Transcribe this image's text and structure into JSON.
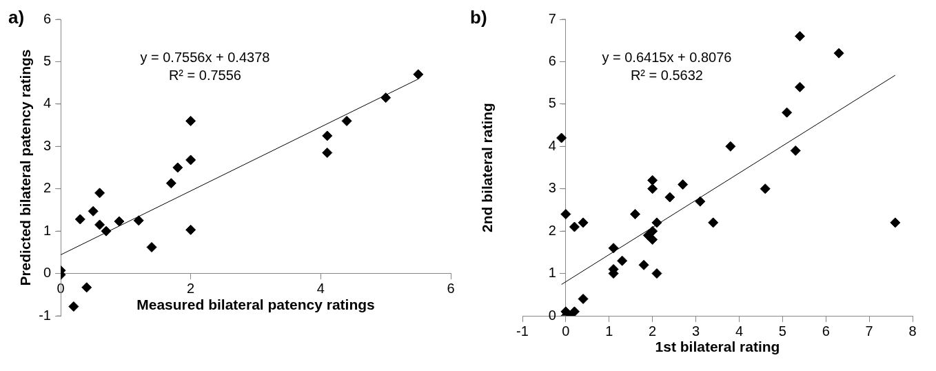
{
  "chart_data": [
    {
      "type": "scatter",
      "xlabel": "Measured bilateral patency ratings",
      "ylabel": "Predicted bilateral patency ratings",
      "annotations": [
        "a)",
        "y = 0.7556x + 0.4378",
        "R² = 0.7556"
      ],
      "xlim": [
        0,
        6
      ],
      "xticks": [
        0,
        2,
        4,
        6
      ],
      "ylim": [
        -1,
        6
      ],
      "yticks": [
        -1,
        0,
        1,
        2,
        3,
        4,
        5,
        6
      ],
      "grid": false,
      "legend": false,
      "series": [
        {
          "marker": "diamond",
          "color": "#000000",
          "x": [
            0,
            0,
            0.2,
            0.4,
            0.3,
            0.5,
            0.6,
            0.6,
            0.7,
            0.9,
            1.2,
            1.4,
            1.7,
            1.8,
            2.0,
            2.0,
            2.0,
            4.1,
            4.1,
            4.4,
            5.0,
            5.5
          ],
          "values": [
            0.07,
            -0.03,
            -0.78,
            -0.33,
            1.28,
            1.47,
            1.9,
            1.15,
            1.0,
            1.23,
            1.25,
            0.62,
            2.13,
            2.5,
            3.6,
            2.68,
            1.03,
            3.25,
            2.85,
            3.6,
            4.15,
            4.7
          ]
        },
        {
          "type": "line",
          "marker": "none",
          "color": "#000000",
          "x": [
            0,
            5.5
          ],
          "values": [
            0.44,
            4.59
          ]
        }
      ]
    },
    {
      "type": "scatter",
      "xlabel": "1st bilateral rating",
      "ylabel": "2nd bilateral rating",
      "annotations": [
        "b)",
        "y = 0.6415x + 0.8076",
        "R² = 0.5632"
      ],
      "xlim": [
        -1,
        8
      ],
      "xticks": [
        -1,
        0,
        1,
        2,
        3,
        4,
        5,
        6,
        7,
        8
      ],
      "ylim": [
        0,
        7
      ],
      "yticks": [
        0,
        1,
        2,
        3,
        4,
        5,
        6,
        7
      ],
      "grid": false,
      "legend": false,
      "series": [
        {
          "marker": "diamond",
          "color": "#000000",
          "x": [
            -0.1,
            0,
            0.2,
            0.4,
            0,
            0,
            0.1,
            0.2,
            0.4,
            1.1,
            1.1,
            1.1,
            1.3,
            1.6,
            1.8,
            1.9,
            2.0,
            2.0,
            2.0,
            2.0,
            2.1,
            2.1,
            2.4,
            2.7,
            3.1,
            3.4,
            3.8,
            4.6,
            5.1,
            5.3,
            5.4,
            5.4,
            6.3,
            7.6
          ],
          "values": [
            4.2,
            2.4,
            2.1,
            2.2,
            0.1,
            0,
            0,
            0.1,
            0.4,
            1.6,
            1.1,
            1.0,
            1.3,
            2.4,
            1.2,
            1.9,
            2.0,
            1.8,
            3.2,
            3.0,
            2.2,
            1.0,
            2.8,
            3.1,
            2.7,
            2.2,
            4.0,
            3.0,
            4.8,
            3.9,
            5.4,
            6.6,
            6.2,
            2.2
          ]
        },
        {
          "type": "line",
          "marker": "none",
          "color": "#000000",
          "x": [
            -0.1,
            7.6
          ],
          "values": [
            0.74,
            5.68
          ]
        }
      ]
    }
  ]
}
